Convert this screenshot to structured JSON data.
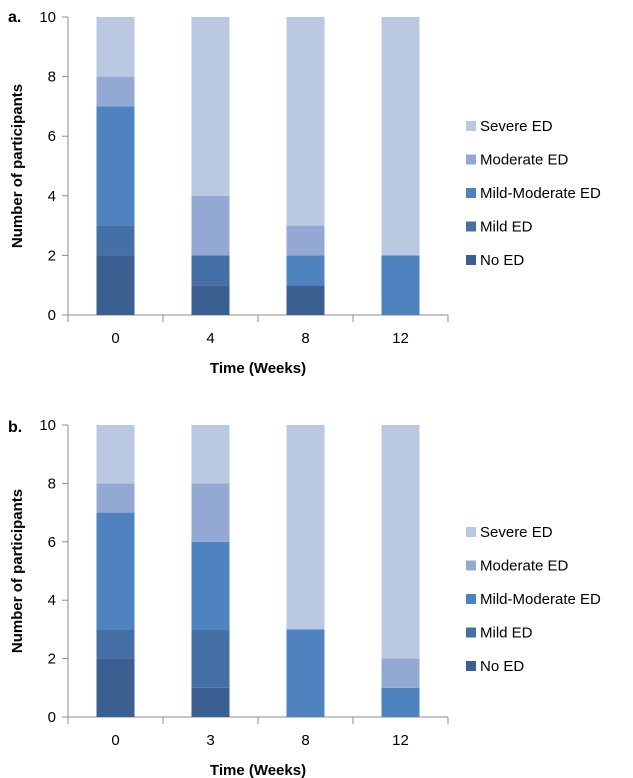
{
  "colors": {
    "No ED": "#3b5f91",
    "Mild ED": "#4470a6",
    "Mild-Moderate ED": "#4f83c0",
    "Moderate ED": "#93a9d3",
    "Severe ED": "#bac8e1",
    "axis": "#8c8c8c"
  },
  "chart_data": [
    {
      "type": "bar",
      "stacked": true,
      "panel_label": "a.",
      "title": "",
      "xlabel": "Time (Weeks)",
      "ylabel": "Number of participants",
      "ylim": [
        0,
        10
      ],
      "yticks": [
        0,
        2,
        4,
        6,
        8,
        10
      ],
      "categories": [
        "0",
        "4",
        "8",
        "12"
      ],
      "legend_position": "right",
      "series": [
        {
          "name": "No ED",
          "values": [
            2,
            1,
            1,
            0
          ]
        },
        {
          "name": "Mild ED",
          "values": [
            1,
            1,
            0,
            0
          ]
        },
        {
          "name": "Mild-Moderate ED",
          "values": [
            4,
            0,
            1,
            2
          ]
        },
        {
          "name": "Moderate ED",
          "values": [
            1,
            2,
            1,
            0
          ]
        },
        {
          "name": "Severe ED",
          "values": [
            2,
            6,
            7,
            8
          ]
        }
      ]
    },
    {
      "type": "bar",
      "stacked": true,
      "panel_label": "b.",
      "title": "",
      "xlabel": "Time (Weeks)",
      "ylabel": "Number of participants",
      "ylim": [
        0,
        10
      ],
      "yticks": [
        0,
        2,
        4,
        6,
        8,
        10
      ],
      "categories": [
        "0",
        "3",
        "8",
        "12"
      ],
      "legend_position": "right",
      "series": [
        {
          "name": "No ED",
          "values": [
            2,
            1,
            0,
            0
          ]
        },
        {
          "name": "Mild ED",
          "values": [
            1,
            2,
            0,
            0
          ]
        },
        {
          "name": "Mild-Moderate ED",
          "values": [
            4,
            3,
            3,
            1
          ]
        },
        {
          "name": "Moderate ED",
          "values": [
            1,
            2,
            0,
            1
          ]
        },
        {
          "name": "Severe ED",
          "values": [
            2,
            2,
            7,
            8
          ]
        }
      ]
    }
  ]
}
